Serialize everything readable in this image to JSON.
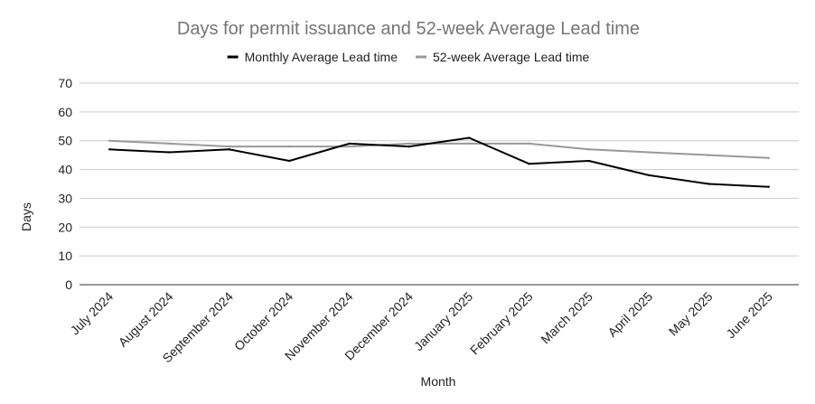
{
  "chart_data": {
    "type": "line",
    "title": "Days for permit issuance and 52-week Average Lead time",
    "xlabel": "Month",
    "ylabel": "Days",
    "ylim": [
      0,
      70
    ],
    "yticks": [
      0,
      10,
      20,
      30,
      40,
      50,
      60,
      70
    ],
    "grid": true,
    "legend_position": "top",
    "categories": [
      "July 2024",
      "August 2024",
      "September 2024",
      "October 2024",
      "November 2024",
      "December 2024",
      "January 2025",
      "February 2025",
      "March 2025",
      "April 2025",
      "May 2025",
      "June 2025"
    ],
    "series": [
      {
        "name": "Monthly Average Lead time",
        "color": "#000000",
        "values": [
          47,
          46,
          47,
          43,
          49,
          48,
          51,
          42,
          43,
          38,
          35,
          34
        ]
      },
      {
        "name": "52-week Average Lead time",
        "color": "#999999",
        "values": [
          50,
          49,
          48,
          48,
          48,
          49,
          49,
          49,
          47,
          46,
          45,
          44
        ]
      }
    ]
  }
}
